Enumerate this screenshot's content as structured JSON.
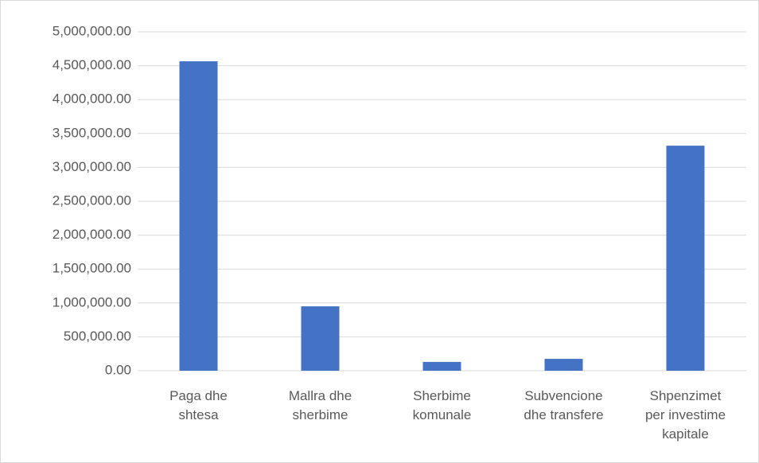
{
  "chart_data": {
    "type": "bar",
    "categories": [
      "Paga dhe shtesa",
      "Mallra dhe sherbime",
      "Sherbime komunale",
      "Subvencione dhe transfere",
      "Shpenzimet per investime kapitale"
    ],
    "values": [
      4565000,
      950000,
      130000,
      175000,
      3320000
    ],
    "color": "#4472c4",
    "ylim": [
      0,
      5000000
    ],
    "yticks": [
      {
        "value": 0,
        "label": "0.00"
      },
      {
        "value": 500000,
        "label": "500,000.00"
      },
      {
        "value": 1000000,
        "label": "1,000,000.00"
      },
      {
        "value": 1500000,
        "label": "1,500,000.00"
      },
      {
        "value": 2000000,
        "label": "2,000,000.00"
      },
      {
        "value": 2500000,
        "label": "2,500,000.00"
      },
      {
        "value": 3000000,
        "label": "3,000,000.00"
      },
      {
        "value": 3500000,
        "label": "3,500,000.00"
      },
      {
        "value": 4000000,
        "label": "4,000,000.00"
      },
      {
        "value": 4500000,
        "label": "4,500,000.00"
      },
      {
        "value": 5000000,
        "label": "5,000,000.00"
      }
    ],
    "grid": true
  }
}
